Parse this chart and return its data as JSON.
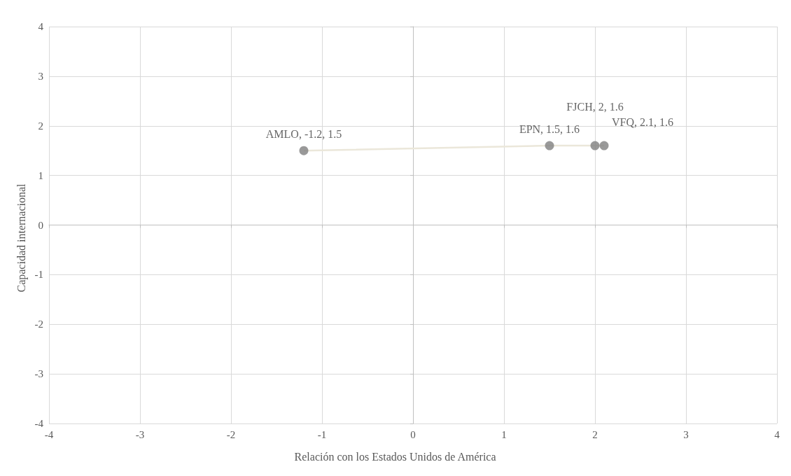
{
  "chart_data": {
    "type": "scatter",
    "xlabel": "Relación con los Estados Unidos de América",
    "ylabel": "Capacidad internacional",
    "x": [
      -1.2,
      1.5,
      2,
      2.1
    ],
    "series": [
      {
        "type": "line",
        "marker": "none",
        "color": "#ebe7da",
        "values": [
          1.5,
          1.6,
          1.6,
          1.6
        ]
      },
      {
        "color": "#7f7f7f",
        "values": [
          1.5,
          1.6,
          1.6,
          1.6
        ],
        "value_labels": [
          "AMLO, -1.2, 1.5",
          "EPN, 1.5, 1.6",
          "FJCH, 2, 1.6",
          "VFQ, 2.1, 1.6"
        ]
      }
    ],
    "xlim": [
      -4,
      4
    ],
    "xticks": [
      -4,
      -3,
      -2,
      -1,
      0,
      1,
      2,
      3,
      4
    ],
    "ylim": [
      -4,
      4
    ],
    "yticks": [
      -4,
      -3,
      -2,
      -1,
      0,
      1,
      2,
      3,
      4
    ],
    "grid": true,
    "marker": "circle",
    "line_style": "solid"
  }
}
